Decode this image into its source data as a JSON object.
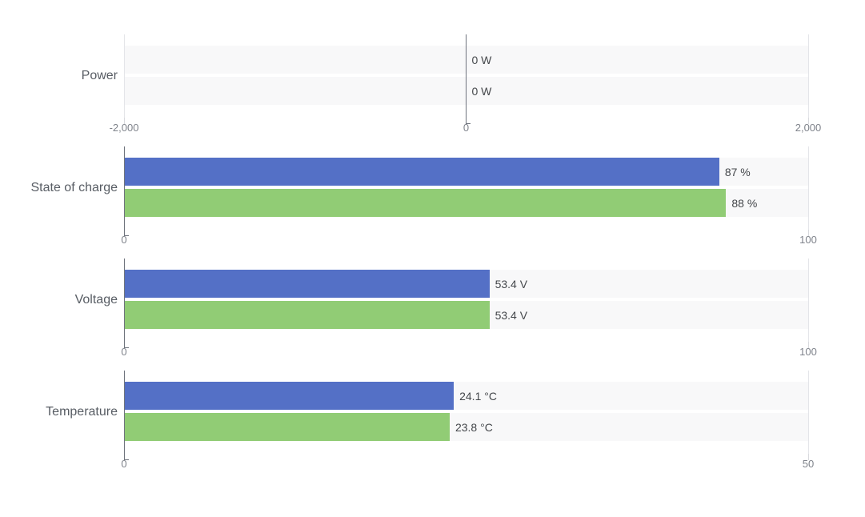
{
  "colors": {
    "background": "#ffffff",
    "series_blue": "#5470c6",
    "series_green": "#91cc75",
    "bar_track": "#f8f8f9",
    "grid_line": "#e4e5e9",
    "grid_tick": "#d9dade",
    "axis_line": "#6e737d",
    "tick_label": "#7f838b",
    "category_label": "#585d64",
    "value_label": "#44474b"
  },
  "chart_data": [
    {
      "id": "power",
      "type": "bar",
      "orientation": "horizontal",
      "category": "Power",
      "unit": "W",
      "xlim": [
        -2000,
        2000
      ],
      "x_ticks": [
        {
          "value": -2000,
          "label": "-2,000"
        },
        {
          "value": 0,
          "label": "0"
        },
        {
          "value": 2000,
          "label": "2,000"
        }
      ],
      "series": [
        {
          "value": 0,
          "label": "0 W",
          "color": "#5470c6"
        },
        {
          "value": 0,
          "label": "0 W",
          "color": "#91cc75"
        }
      ],
      "grid": true,
      "legend": false
    },
    {
      "id": "state-of-charge",
      "type": "bar",
      "orientation": "horizontal",
      "category": "State of charge",
      "unit": "%",
      "xlim": [
        0,
        100
      ],
      "x_ticks": [
        {
          "value": 0,
          "label": "0"
        },
        {
          "value": 100,
          "label": "100"
        }
      ],
      "series": [
        {
          "value": 87,
          "label": "87 %",
          "color": "#5470c6"
        },
        {
          "value": 88,
          "label": "88 %",
          "color": "#91cc75"
        }
      ],
      "grid": true,
      "legend": false
    },
    {
      "id": "voltage",
      "type": "bar",
      "orientation": "horizontal",
      "category": "Voltage",
      "unit": "V",
      "xlim": [
        0,
        100
      ],
      "x_ticks": [
        {
          "value": 0,
          "label": "0"
        },
        {
          "value": 100,
          "label": "100"
        }
      ],
      "series": [
        {
          "value": 53.4,
          "label": "53.4 V",
          "color": "#5470c6"
        },
        {
          "value": 53.4,
          "label": "53.4 V",
          "color": "#91cc75"
        }
      ],
      "grid": true,
      "legend": false
    },
    {
      "id": "temperature",
      "type": "bar",
      "orientation": "horizontal",
      "category": "Temperature",
      "unit": "°C",
      "xlim": [
        0,
        50
      ],
      "x_ticks": [
        {
          "value": 0,
          "label": "0"
        },
        {
          "value": 50,
          "label": "50"
        }
      ],
      "series": [
        {
          "value": 24.1,
          "label": "24.1 °C",
          "color": "#5470c6"
        },
        {
          "value": 23.8,
          "label": "23.8 °C",
          "color": "#91cc75"
        }
      ],
      "grid": true,
      "legend": false
    }
  ]
}
